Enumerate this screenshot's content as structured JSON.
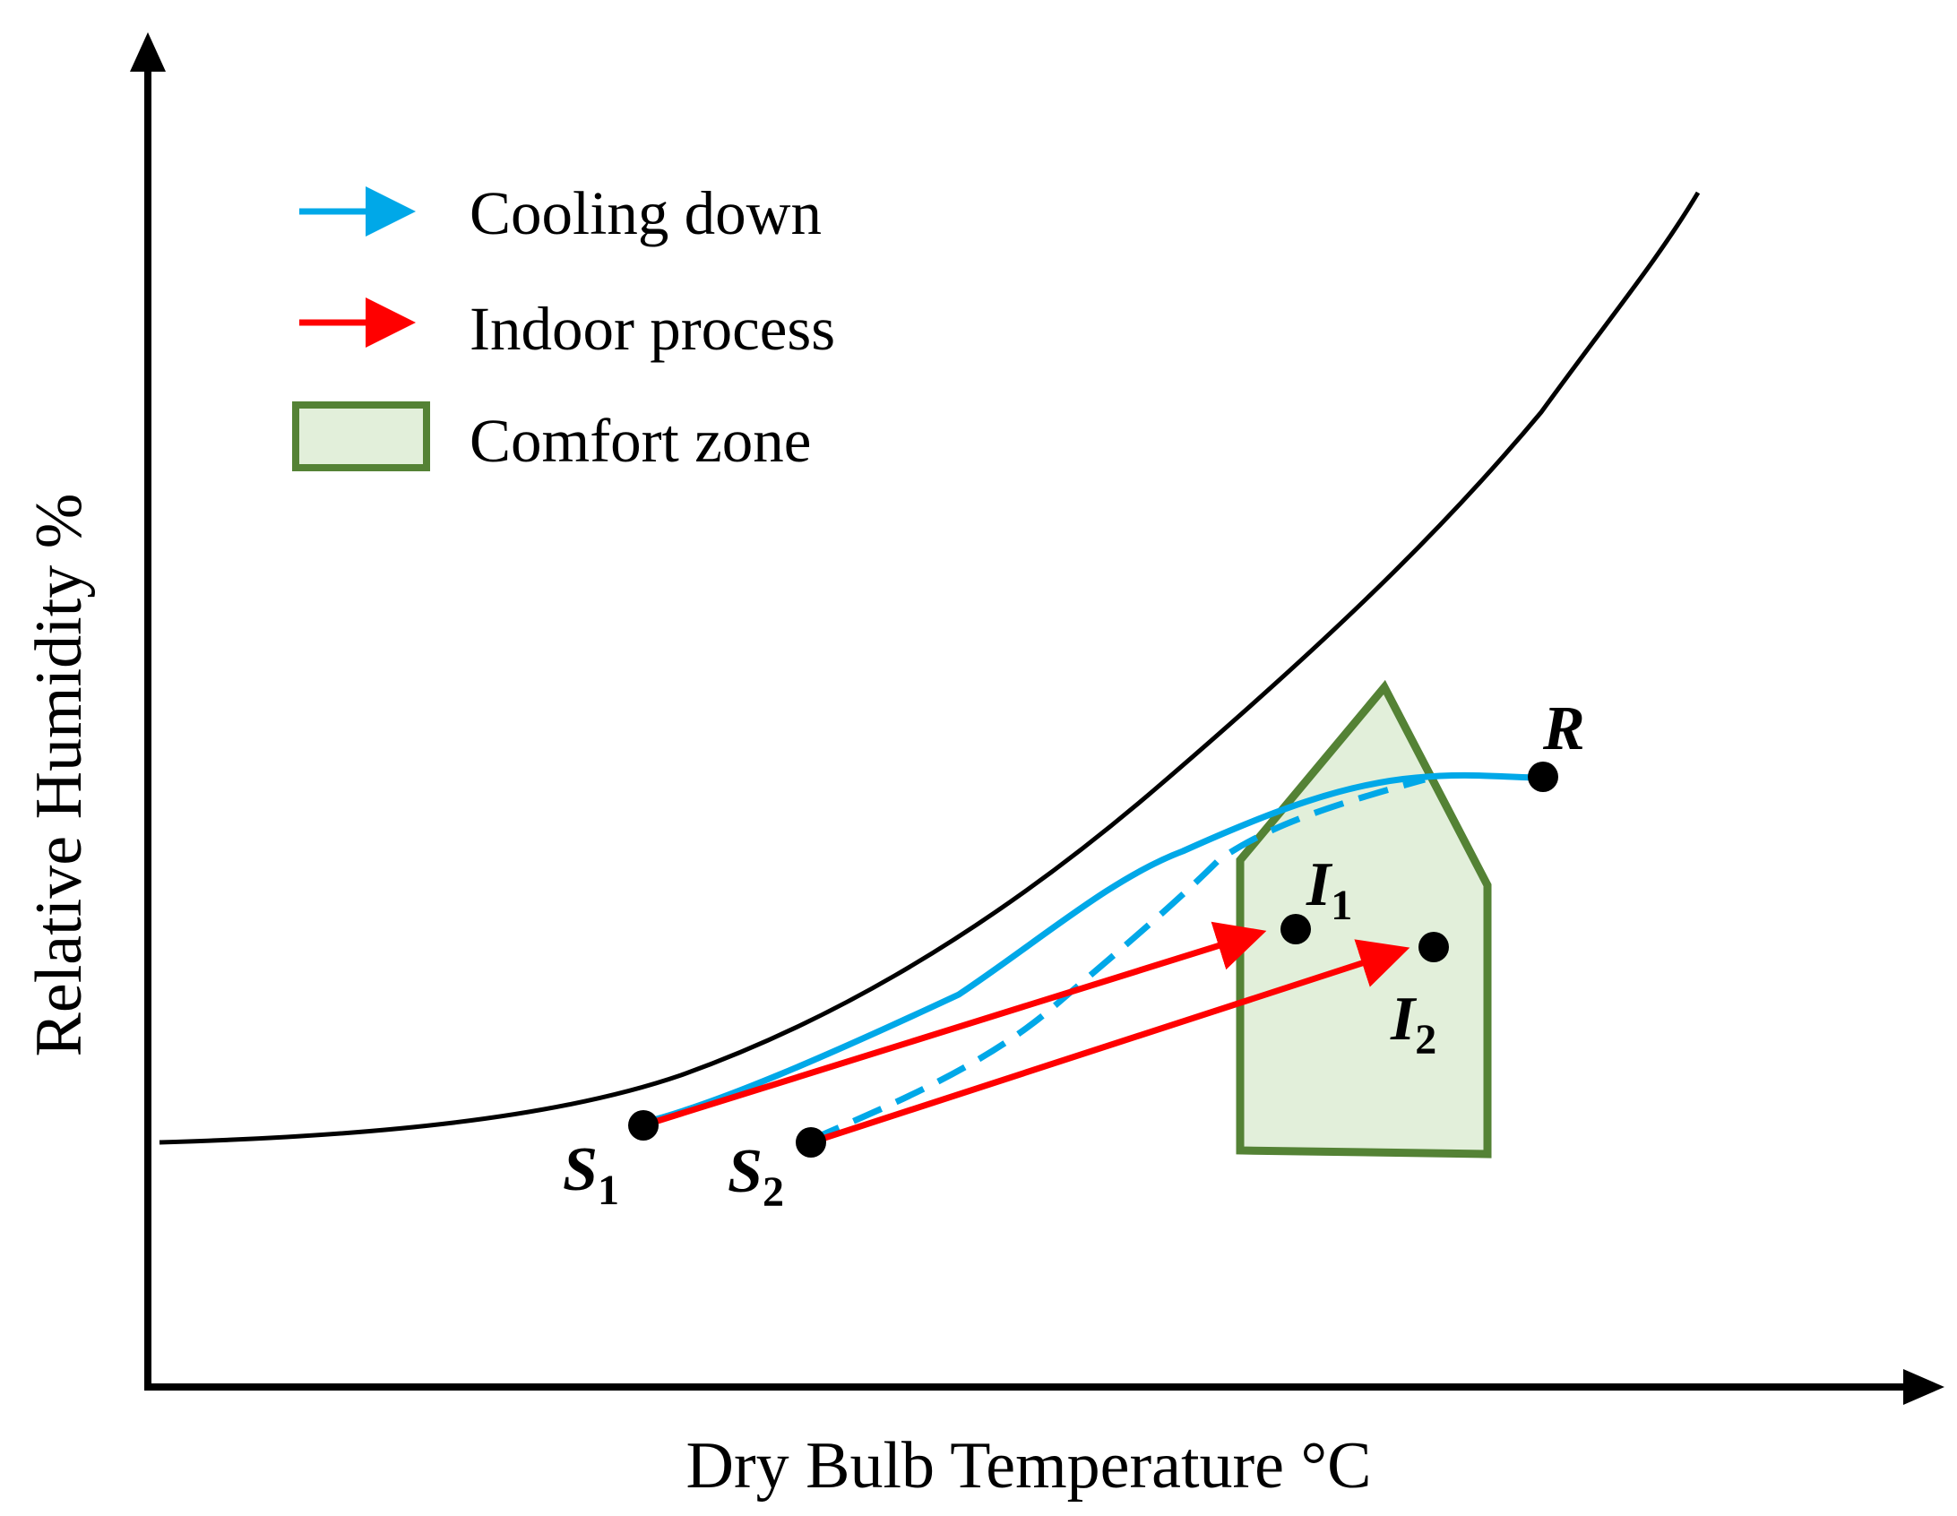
{
  "axes": {
    "x_label": "Dry Bulb Temperature °C",
    "y_label": "Relative Humidity %"
  },
  "legend": {
    "cooling": {
      "label": "Cooling down",
      "color": "#00A8E8"
    },
    "indoor": {
      "label": "Indoor process",
      "color": "#FF0000"
    },
    "comfort": {
      "label": "Comfort zone",
      "fill": "#E2EFDA",
      "stroke": "#548235"
    }
  },
  "points": {
    "s1": {
      "letter": "S",
      "sub": "1"
    },
    "s2": {
      "letter": "S",
      "sub": "2"
    },
    "i1": {
      "letter": "I",
      "sub": "1"
    },
    "i2": {
      "letter": "I",
      "sub": "2"
    },
    "r": {
      "letter": "R",
      "sub": ""
    }
  },
  "colors": {
    "axis": "#000000",
    "saturation_curve": "#000000",
    "point": "#000000"
  }
}
